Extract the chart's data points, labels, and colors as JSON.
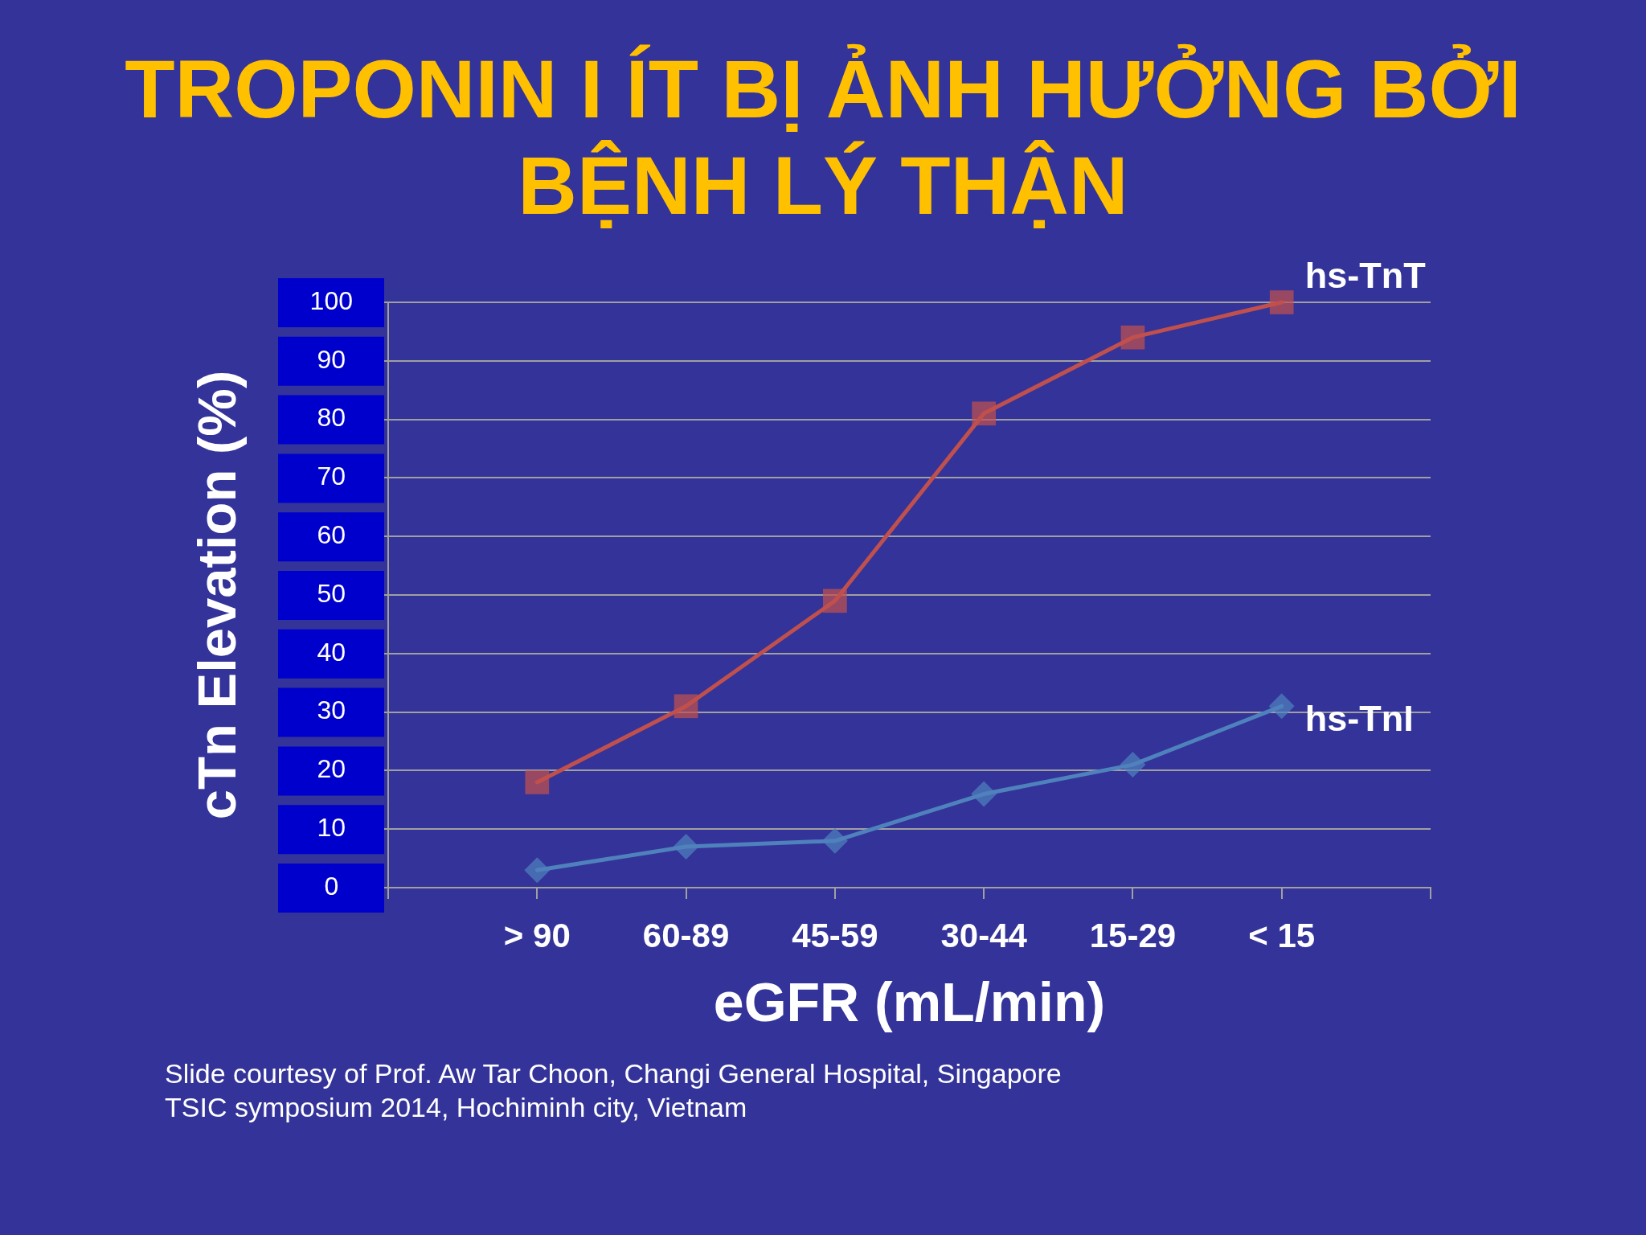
{
  "chart_data": {
    "type": "line",
    "title": "TROPONIN I ÍT BỊ ẢNH HƯỞNG BỞI BỆNH LÝ THẬN",
    "xlabel": "eGFR (mL/min)",
    "ylabel": "cTn Elevation (%)",
    "categories": [
      "> 90",
      "60-89",
      "45-59",
      "30-44",
      "15-29",
      "< 15"
    ],
    "series": [
      {
        "name": "hs-TnT",
        "color": "#c0504d",
        "marker": "square",
        "values": [
          18,
          31,
          49,
          81,
          94,
          100
        ]
      },
      {
        "name": "hs-TnI",
        "color": "#4f81bd",
        "marker": "diamond",
        "values": [
          3,
          7,
          8,
          16,
          21,
          31
        ]
      }
    ],
    "ylim": [
      0,
      100
    ],
    "yticks": [
      0,
      10,
      20,
      30,
      40,
      50,
      60,
      70,
      80,
      90,
      100
    ],
    "grid": "y",
    "legend": false,
    "annotations": [
      "Slide courtesy of Prof. Aw Tar Choon, Changi General Hospital, Singapore",
      "TSIC symposium 2014, Hochiminh city, Vietnam"
    ]
  }
}
